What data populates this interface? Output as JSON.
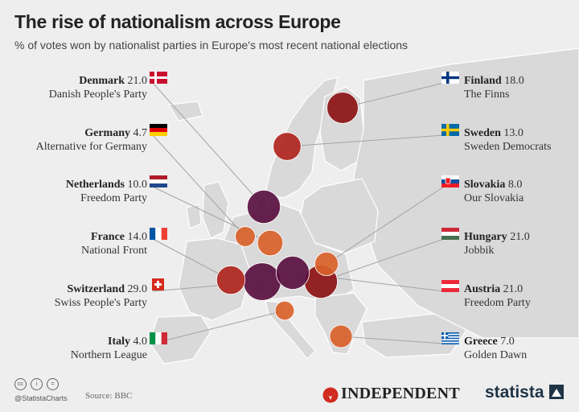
{
  "title": "The rise of nationalism across Europe",
  "subtitle": "% of votes won by nationalist parties in Europe's most recent national elections",
  "colors": {
    "low": "#d9622b",
    "mid": "#b0261e",
    "high": "#8c1215",
    "top": "#5a1040",
    "leader": "#9a9a9a",
    "land": "#d9d9d9",
    "sea": "#eeeeee"
  },
  "countries": [
    {
      "name": "Denmark",
      "value": "21.0",
      "party": "Danish People's Party",
      "side": "left",
      "flag": "denmark"
    },
    {
      "name": "Germany",
      "value": "4.7",
      "party": "Alternative for Germany",
      "side": "left",
      "flag": "germany"
    },
    {
      "name": "Netherlands",
      "value": "10.0",
      "party": "Freedom Party",
      "side": "left",
      "flag": "netherlands"
    },
    {
      "name": "France",
      "value": "14.0",
      "party": "National Front",
      "side": "left",
      "flag": "france"
    },
    {
      "name": "Switzerland",
      "value": "29.0",
      "party": "Swiss People's Party",
      "side": "left",
      "flag": "switzerland"
    },
    {
      "name": "Italy",
      "value": "4.0",
      "party": "Northern League",
      "side": "left",
      "flag": "italy"
    },
    {
      "name": "Finland",
      "value": "18.0",
      "party": "The Finns",
      "side": "right",
      "flag": "finland"
    },
    {
      "name": "Sweden",
      "value": "13.0",
      "party": "Sweden Democrats",
      "side": "right",
      "flag": "sweden"
    },
    {
      "name": "Slovakia",
      "value": "8.0",
      "party": "Our Slovakia",
      "side": "right",
      "flag": "slovakia"
    },
    {
      "name": "Hungary",
      "value": "21.0",
      "party": "Jobbik",
      "side": "right",
      "flag": "hungary"
    },
    {
      "name": "Austria",
      "value": "21.0",
      "party": "Freedom Party",
      "side": "right",
      "flag": "austria"
    },
    {
      "name": "Greece",
      "value": "7.0",
      "party": "Golden Dawn",
      "side": "right",
      "flag": "greece"
    }
  ],
  "footer": {
    "handle": "@StatistaCharts",
    "source": "Source: BBC",
    "independent": "INDEPENDENT",
    "statista": "statista"
  }
}
